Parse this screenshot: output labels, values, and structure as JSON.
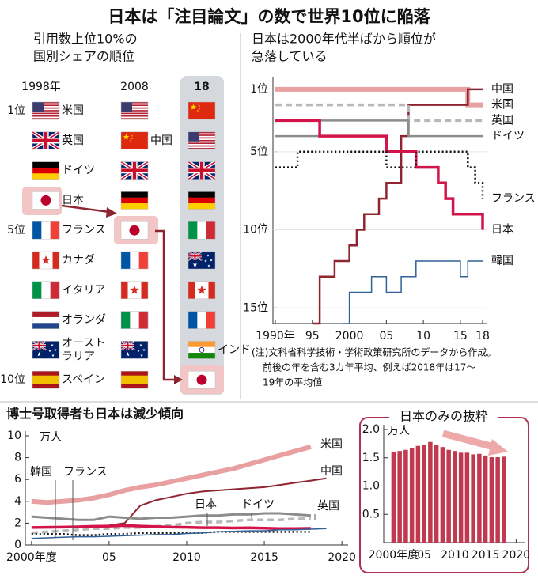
{
  "title": "日本は「注目論文」の数で世界10位に陥落",
  "ranking": {
    "title_lines": [
      "引用数上位10%の",
      "国別シェアの順位"
    ],
    "rank_labels": [
      {
        "value": 1,
        "label": "1位"
      },
      {
        "value": 5,
        "label": "5位"
      },
      {
        "value": 10,
        "label": "10位"
      }
    ],
    "columns": [
      {
        "year": "1998年",
        "labels": [
          "米国",
          "英国",
          "ドイツ",
          "日本",
          "フランス",
          "カナダ",
          "イタリア",
          "オランダ",
          "オースト\nラリア",
          "スペイン"
        ]
      },
      {
        "year": "2008",
        "labels": [
          null,
          "中国",
          null,
          null,
          null,
          null,
          null,
          null,
          null,
          null
        ]
      },
      {
        "year": "18",
        "labels": [
          null,
          null,
          null,
          null,
          null,
          null,
          null,
          null,
          "インド",
          null
        ]
      }
    ]
  },
  "chart_data": [
    {
      "type": "line",
      "step": true,
      "title_lines": [
        "日本は2000年代半ばから順位が",
        "急落している"
      ],
      "x": [
        1990,
        1991,
        1992,
        1993,
        1994,
        1995,
        1996,
        1997,
        1998,
        1999,
        2000,
        2001,
        2002,
        2003,
        2004,
        2005,
        2006,
        2007,
        2008,
        2009,
        2010,
        2011,
        2012,
        2013,
        2014,
        2015,
        2016,
        2017,
        2018
      ],
      "xlim": [
        1990,
        2018
      ],
      "xticks": [
        {
          "value": 1990,
          "label": "1990年"
        },
        {
          "value": 1995,
          "label": "95"
        },
        2000,
        {
          "value": 2005,
          "label": "05"
        },
        {
          "value": 2010,
          "label": "10"
        },
        {
          "value": 2015,
          "label": "15"
        },
        {
          "value": 2018,
          "label": "18"
        }
      ],
      "ylim": [
        16,
        0.5
      ],
      "yticks": [
        {
          "value": 1,
          "label": "1位"
        },
        {
          "value": 5,
          "label": "5位"
        },
        {
          "value": 10,
          "label": "10位"
        },
        {
          "value": 15,
          "label": "15位"
        }
      ],
      "series": [
        {
          "name": "米国",
          "color": "#e8a0a0",
          "linestyle": "solid",
          "values": [
            1,
            1,
            1,
            1,
            1,
            1,
            1,
            1,
            1,
            1,
            1,
            1,
            1,
            1,
            1,
            1,
            1,
            1,
            1,
            1,
            1,
            1,
            1,
            1,
            1,
            1,
            2,
            2,
            2
          ]
        },
        {
          "name": "中国",
          "color": "#8e2430",
          "linestyle": "solid",
          "values": [
            null,
            null,
            null,
            null,
            null,
            16,
            13,
            13,
            12,
            12,
            11,
            10,
            9,
            9,
            8,
            7,
            7,
            4,
            2,
            2,
            2,
            2,
            2,
            2,
            2,
            2,
            1,
            1,
            1
          ]
        },
        {
          "name": "英国",
          "color": "#b8b8b8",
          "linestyle": "dashed",
          "values": [
            2,
            2,
            2,
            2,
            2,
            2,
            2,
            2,
            2,
            2,
            2,
            2,
            2,
            2,
            2,
            2,
            2,
            2,
            3,
            3,
            3,
            3,
            3,
            3,
            3,
            3,
            3,
            3,
            3
          ]
        },
        {
          "name": "ドイツ",
          "color": "#8c8c8c",
          "linestyle": "solid",
          "values": [
            4,
            4,
            4,
            4,
            4,
            4,
            3,
            3,
            3,
            3,
            3,
            3,
            3,
            3,
            3,
            3,
            3,
            3,
            4,
            4,
            4,
            4,
            4,
            4,
            4,
            4,
            4,
            4,
            4
          ]
        },
        {
          "name": "日本",
          "color": "#d2144a",
          "linestyle": "solid",
          "values": [
            3,
            3,
            3,
            3,
            3,
            3,
            4,
            4,
            4,
            4,
            4,
            4,
            4,
            4,
            4,
            5,
            5,
            5,
            5,
            6,
            6,
            6,
            7,
            8,
            9,
            9,
            9,
            9,
            10
          ]
        },
        {
          "name": "フランス",
          "color": "#111111",
          "linestyle": "dotted",
          "values": [
            6,
            6,
            6,
            5,
            5,
            5,
            5,
            5,
            5,
            5,
            5,
            5,
            5,
            5,
            5,
            6,
            6,
            6,
            6,
            5,
            5,
            5,
            5,
            5,
            5,
            5,
            6,
            7,
            8
          ]
        },
        {
          "name": "韓国",
          "color": "#2f6096",
          "linestyle": "solid",
          "values": [
            null,
            null,
            null,
            null,
            null,
            null,
            null,
            null,
            null,
            16,
            14,
            14,
            14,
            13,
            13,
            14,
            14,
            13,
            13,
            12,
            12,
            12,
            12,
            12,
            12,
            13,
            12,
            12,
            12
          ]
        }
      ],
      "note_lines": [
        "(注)文科省科学技術・学術政策研究所のデータから作成。",
        "前後の年を含む3カ年平均、例えば2018年は17～",
        "19年の平均値"
      ]
    },
    {
      "type": "line",
      "step": false,
      "title": "博士号取得者も日本は減少傾向",
      "unit": "万人",
      "x": [
        2000,
        2001,
        2002,
        2003,
        2004,
        2005,
        2006,
        2007,
        2008,
        2009,
        2010,
        2011,
        2012,
        2013,
        2014,
        2015,
        2016,
        2017,
        2018,
        2019
      ],
      "xlim": [
        1999.6,
        2020.4
      ],
      "xticks": [
        {
          "value": 2000,
          "label": "2000年度"
        },
        {
          "value": 2005,
          "label": "05"
        },
        2010,
        2015,
        2020
      ],
      "ylim": [
        0,
        10
      ],
      "yticks": [
        0,
        2,
        4,
        6,
        8,
        10
      ],
      "series": [
        {
          "name": "米国",
          "color": "#e8a0a0",
          "linestyle": "solid",
          "values": [
            4.0,
            3.9,
            4.0,
            4.1,
            4.3,
            4.6,
            5.0,
            5.3,
            5.5,
            5.8,
            6.1,
            6.4,
            6.7,
            7.0,
            7.4,
            7.8,
            8.2,
            8.6,
            9.0,
            null
          ]
        },
        {
          "name": "中国",
          "color": "#8e2430",
          "linestyle": "solid",
          "values": [
            null,
            null,
            null,
            null,
            null,
            1.8,
            2.0,
            3.6,
            4.1,
            4.4,
            4.7,
            4.9,
            5.0,
            5.1,
            5.2,
            5.3,
            5.5,
            5.7,
            5.9,
            6.1
          ]
        },
        {
          "name": "ドイツ",
          "color": "#8c8c8c",
          "linestyle": "solid",
          "values": [
            2.6,
            2.5,
            2.4,
            2.3,
            2.3,
            2.6,
            2.5,
            2.4,
            2.5,
            2.5,
            2.6,
            2.7,
            2.7,
            2.8,
            2.8,
            2.9,
            2.9,
            2.8,
            2.7,
            null
          ]
        },
        {
          "name": "英国",
          "color": "#b8b8b8",
          "linestyle": "dashed",
          "values": [
            1.1,
            1.2,
            1.3,
            1.4,
            1.5,
            1.5,
            1.6,
            1.6,
            1.7,
            1.8,
            2.0,
            2.1,
            2.1,
            2.2,
            2.3,
            2.3,
            2.3,
            2.4,
            2.4,
            null
          ]
        },
        {
          "name": "日本",
          "color": "#d2144a",
          "linestyle": "solid",
          "values": [
            1.6,
            1.62,
            1.64,
            1.67,
            1.71,
            1.73,
            1.78,
            1.73,
            1.69,
            1.64,
            1.62,
            1.59,
            1.59,
            1.56,
            1.57,
            1.54,
            1.51,
            1.51,
            1.52,
            null
          ]
        },
        {
          "name": "フランス",
          "color": "#111111",
          "linestyle": "dotted",
          "values": [
            1.0,
            1.0,
            1.0,
            0.9,
            0.9,
            1.0,
            1.0,
            1.1,
            1.1,
            1.1,
            1.1,
            1.1,
            1.2,
            1.2,
            1.2,
            1.2,
            1.2,
            1.2,
            1.2,
            null
          ]
        },
        {
          "name": "韓国",
          "color": "#2f6096",
          "linestyle": "solid",
          "values": [
            0.6,
            0.65,
            0.7,
            0.75,
            0.75,
            0.8,
            0.85,
            0.9,
            0.95,
            0.95,
            1.05,
            1.1,
            1.2,
            1.25,
            1.3,
            1.3,
            1.4,
            1.4,
            1.45,
            1.5
          ]
        }
      ]
    },
    {
      "type": "bar",
      "title": "日本のみの抜粋",
      "unit": "万人",
      "x": [
        2000,
        2001,
        2002,
        2003,
        2004,
        2005,
        2006,
        2007,
        2008,
        2009,
        2010,
        2011,
        2012,
        2013,
        2014,
        2015,
        2016,
        2017,
        2018
      ],
      "values": [
        1.6,
        1.62,
        1.64,
        1.67,
        1.71,
        1.73,
        1.78,
        1.73,
        1.69,
        1.64,
        1.62,
        1.59,
        1.59,
        1.56,
        1.57,
        1.54,
        1.51,
        1.51,
        1.52
      ],
      "color": "#c0394f",
      "xlim": [
        1998.4,
        2021.5
      ],
      "xticks": [
        {
          "value": 2000,
          "label": "2000年度"
        },
        {
          "value": 2005,
          "label": "05"
        },
        2010,
        2015,
        2020
      ],
      "ylim": [
        0,
        2
      ],
      "yticks": [
        0.5,
        {
          "value": 1,
          "label": "1.0"
        },
        1.5,
        {
          "value": 2,
          "label": "2.0"
        }
      ]
    }
  ]
}
